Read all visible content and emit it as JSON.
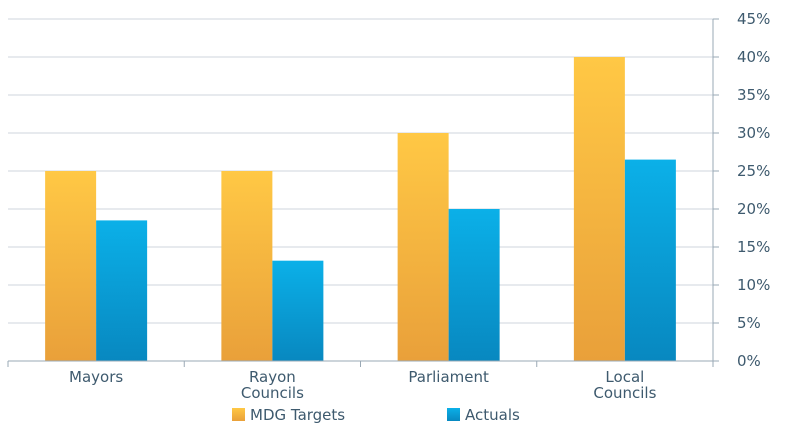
{
  "chart_data": {
    "type": "bar",
    "categories": [
      [
        "Mayors"
      ],
      [
        "Rayon",
        "Councils"
      ],
      [
        "Parliament"
      ],
      [
        "Local",
        "Councils"
      ]
    ],
    "series": [
      {
        "name": "MDG Targets",
        "values": [
          25,
          25,
          30,
          40
        ],
        "color": "#f5b13a"
      },
      {
        "name": "Actuals",
        "values": [
          18.5,
          13.2,
          20,
          26.5
        ],
        "color": "#0aa0d8"
      }
    ],
    "ylim": [
      0,
      45
    ],
    "ytick_step": 5,
    "ytick_labels": [
      "0%",
      "5%",
      "10%",
      "15%",
      "20%",
      "25%",
      "30%",
      "35%",
      "40%",
      "45%"
    ],
    "y_axis_side": "right",
    "grid": true,
    "legend_position": "bottom"
  }
}
